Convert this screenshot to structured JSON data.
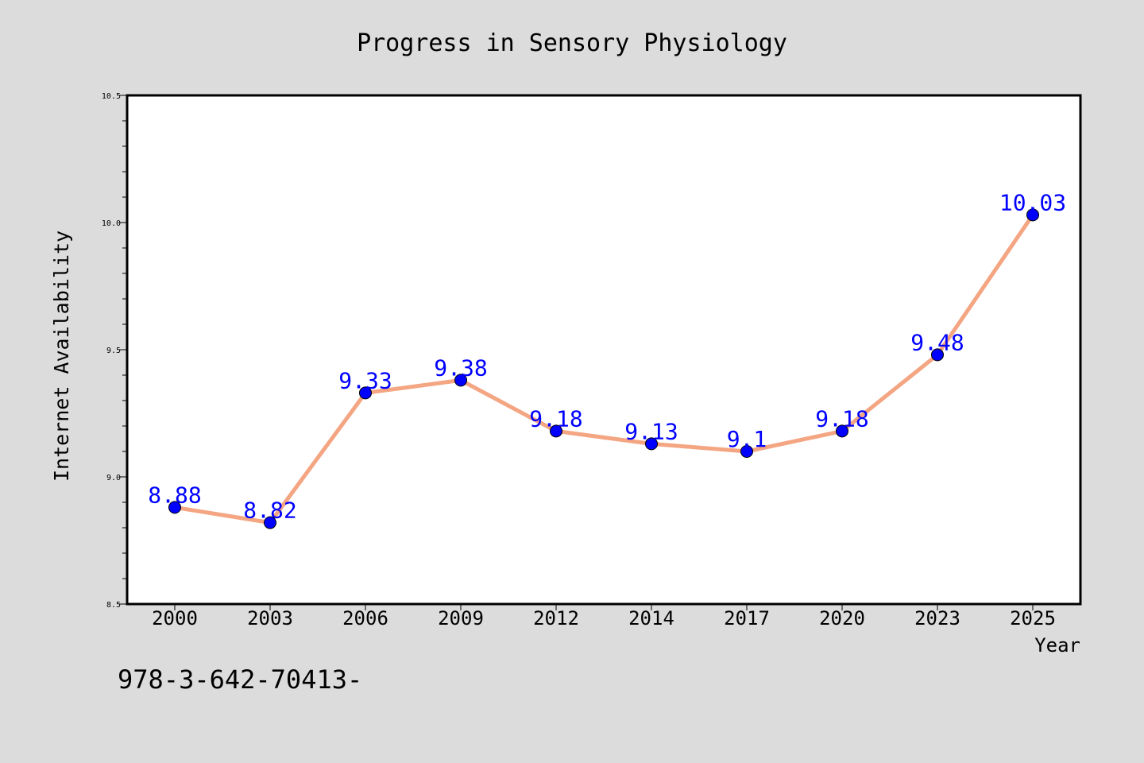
{
  "page": {
    "background": "#dcdcdc",
    "footer_text": "978-3-642-70413-"
  },
  "chart_data": {
    "type": "line",
    "title": "Progress in Sensory Physiology",
    "xlabel": "Year",
    "ylabel": "Internet Availability",
    "categories": [
      "2000",
      "2003",
      "2006",
      "2009",
      "2012",
      "2014",
      "2017",
      "2020",
      "2023",
      "2025"
    ],
    "series": [
      {
        "values": [
          8.88,
          8.82,
          9.33,
          9.38,
          9.18,
          9.13,
          9.1,
          9.18,
          9.48,
          10.03
        ],
        "labels": [
          "8.88",
          "8.82",
          "9.33",
          "9.38",
          "9.18",
          "9.13",
          "9.1",
          "9.18",
          "9.48",
          "10.03"
        ],
        "line_color": "#f4a582",
        "marker_color": "#0000ff",
        "label_color": "#0000ff"
      }
    ],
    "ylim": [
      8.5,
      10.5
    ],
    "yticks": [
      "8.5",
      "9.0",
      "9.5",
      "10.0",
      "10.5"
    ],
    "grid": false,
    "legend": "none"
  }
}
